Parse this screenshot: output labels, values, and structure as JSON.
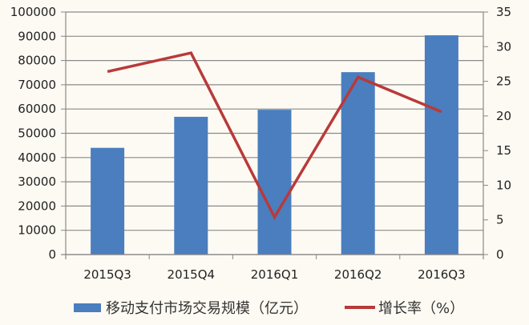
{
  "chart_data": {
    "type": "bar",
    "title": "",
    "categories": [
      "2015Q3",
      "2015Q4",
      "2016Q1",
      "2016Q2",
      "2016Q3"
    ],
    "series": [
      {
        "name": "移动支付市场交易规模（亿元）",
        "type": "bar",
        "axis": "left",
        "color": "#4a7ebf",
        "values": [
          44000,
          56800,
          59700,
          75200,
          90400
        ]
      },
      {
        "name": "增长率（%）",
        "type": "line",
        "axis": "right",
        "color": "#b83a3a",
        "values": [
          26.4,
          29.1,
          5.4,
          25.6,
          20.6
        ]
      }
    ],
    "y_left": {
      "min": 0,
      "max": 100000,
      "step": 10000,
      "ticks": [
        "0",
        "10000",
        "20000",
        "30000",
        "40000",
        "50000",
        "60000",
        "70000",
        "80000",
        "90000",
        "100000"
      ]
    },
    "y_right": {
      "min": 0,
      "max": 35,
      "step": 5,
      "ticks": [
        "0",
        "5",
        "10",
        "15",
        "20",
        "25",
        "30",
        "35"
      ]
    },
    "grid": true,
    "legend_position": "bottom"
  },
  "legend": {
    "bar_label": "移动支付市场交易规模（亿元）",
    "line_label": "增长率（%）"
  }
}
